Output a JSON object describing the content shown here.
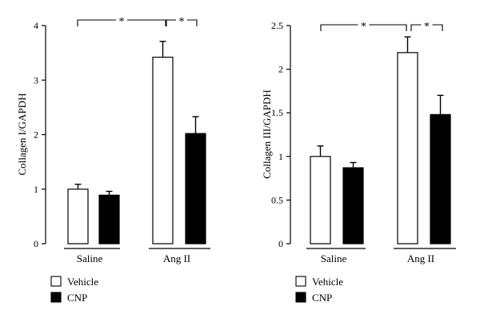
{
  "legend": {
    "entries": [
      {
        "label": "Vehicle",
        "fill": "#ffffff"
      },
      {
        "label": "CNP",
        "fill": "#000000"
      }
    ]
  },
  "chart_data": [
    {
      "type": "bar",
      "categories": [
        "Saline",
        "Ang II"
      ],
      "series": [
        {
          "name": "Vehicle",
          "values": [
            1.0,
            3.42
          ],
          "errors": [
            0.09,
            0.29
          ],
          "fill": "#ffffff"
        },
        {
          "name": "CNP",
          "values": [
            0.89,
            2.02
          ],
          "errors": [
            0.07,
            0.31
          ],
          "fill": "#000000"
        }
      ],
      "ylabel": "Collagen I/GAPDH",
      "ylim": [
        0,
        4
      ],
      "yticks": [
        "0",
        "1",
        "2",
        "3",
        "4"
      ],
      "significance": [
        {
          "between": "Saline-Vehicle vs Ang II-Vehicle",
          "label": "*"
        },
        {
          "between": "Ang II-Vehicle vs Ang II-CNP",
          "label": "*"
        }
      ]
    },
    {
      "type": "bar",
      "categories": [
        "Saline",
        "Ang II"
      ],
      "series": [
        {
          "name": "Vehicle",
          "values": [
            1.0,
            2.19
          ],
          "errors": [
            0.12,
            0.18
          ],
          "fill": "#ffffff"
        },
        {
          "name": "CNP",
          "values": [
            0.87,
            1.48
          ],
          "errors": [
            0.06,
            0.22
          ],
          "fill": "#000000"
        }
      ],
      "ylabel": "Collagen III/GAPDH",
      "ylim": [
        0,
        2.5
      ],
      "yticks": [
        "0",
        "0.5",
        "1",
        "1.5",
        "2",
        "2.5"
      ],
      "significance": [
        {
          "between": "Saline-Vehicle vs Ang II-Vehicle",
          "label": "*"
        },
        {
          "between": "Ang II-Vehicle vs Ang II-CNP",
          "label": "*"
        }
      ]
    }
  ]
}
